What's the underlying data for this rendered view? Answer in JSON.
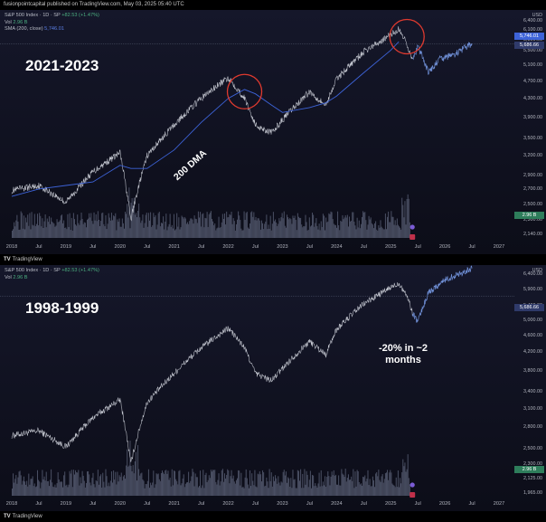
{
  "header": {
    "publisher_line": "fusionpointcapital published on TradingView.com, May 03, 2025 05:40 UTC"
  },
  "footer": {
    "brand": "TradingView",
    "logo_mark": "TV"
  },
  "colors": {
    "price_line": "#c7cad3",
    "forecast_line": "#6f8fd6",
    "sma_line": "#3d63d8",
    "circle": "#e03a2f",
    "volume": "#4a4f63",
    "price_box": "#2f3a6a",
    "vol_box": "#2e7d5b",
    "bg_top": "#15172a",
    "bg_bottom": "#0c0d18"
  },
  "icons": [
    "tradingview-logo-icon",
    "event-flag-icon",
    "earnings-marker-icon"
  ],
  "chart_data": [
    {
      "type": "line",
      "title": "2021-2023",
      "legend": {
        "symbol": "S&P 500 Index · 1D · SP",
        "change": "+82.53 (+1.47%)",
        "vol_label": "Vol",
        "vol_value": "2.96 B",
        "sma_label": "SMA (200, close)",
        "sma_value": "5,746.01"
      },
      "currency": "USD",
      "annotation": "200 DMA",
      "x_ticks": [
        "2018",
        "Jul",
        "2019",
        "Jul",
        "2020",
        "Jul",
        "2021",
        "Jul",
        "2022",
        "Jul",
        "2023",
        "Jul",
        "2024",
        "Jul",
        "2025",
        "Jul",
        "2026",
        "Jul",
        "2027"
      ],
      "y_ticks": [
        6400,
        6100,
        5800,
        5500,
        5100,
        4700,
        4300,
        3900,
        3500,
        3200,
        2900,
        2700,
        2500,
        2300,
        2140
      ],
      "y_tick_labels": [
        "6,400.00",
        "6,100.00",
        "5,800.00",
        "5,500.00",
        "5,100.00",
        "4,700.00",
        "4,300.00",
        "3,900.00",
        "3,500.00",
        "3,200.00",
        "2,900.00",
        "2,700.00",
        "2,500.00",
        "2,300.00",
        "2,140.00"
      ],
      "price_label": "5,686.66",
      "sma_label_box": "5,746.01",
      "vol_label_box": "2.96 B",
      "ylim": [
        2140,
        6400
      ],
      "x": [
        2018.0,
        2018.5,
        2019.0,
        2019.5,
        2020.0,
        2020.2,
        2020.5,
        2021.0,
        2021.5,
        2022.0,
        2022.3,
        2022.5,
        2022.8,
        2023.0,
        2023.5,
        2023.8,
        2024.0,
        2024.5,
        2025.0,
        2025.15,
        2025.3,
        2025.4,
        2025.5,
        2025.7,
        2025.9,
        2026.2,
        2026.5
      ],
      "series": [
        {
          "values": [
            2680,
            2750,
            2520,
            2950,
            3250,
            2300,
            3200,
            3750,
            4300,
            4780,
            4300,
            3750,
            3600,
            3850,
            4450,
            4150,
            4750,
            5450,
            5950,
            6130,
            5700,
            5200,
            5600,
            4900,
            5250,
            5400,
            5700
          ]
        },
        {
          "values": [
            2600,
            2700,
            2750,
            2800,
            3050,
            3000,
            3000,
            3300,
            3800,
            4300,
            4500,
            4400,
            4150,
            4000,
            4100,
            4200,
            4350,
            4900,
            5500,
            5750,
            null,
            null,
            null,
            null,
            null,
            null,
            null
          ]
        }
      ],
      "highlights": [
        {
          "x": 2022.3,
          "y": 4450
        },
        {
          "x": 2025.3,
          "y": 5900
        }
      ]
    },
    {
      "type": "line",
      "title": "1998-1999",
      "legend": {
        "symbol": "S&P 500 Index · 1D · SP",
        "change": "+82.53 (+1.47%)",
        "vol_label": "Vol",
        "vol_value": "2.96 B"
      },
      "currency": "USD",
      "annotation": "-20% in ~2 months",
      "x_ticks": [
        "2018",
        "Jul",
        "2019",
        "Jul",
        "2020",
        "Jul",
        "2021",
        "Jul",
        "2022",
        "Jul",
        "2023",
        "Jul",
        "2024",
        "Jul",
        "2025",
        "Jul",
        "2026",
        "Jul",
        "2027"
      ],
      "y_ticks": [
        6400,
        5900,
        5400,
        5000,
        4600,
        4200,
        3800,
        3400,
        3100,
        2800,
        2500,
        2300,
        2125,
        1965
      ],
      "y_tick_labels": [
        "6,400.00",
        "5,900.00",
        "5,400.00",
        "5,000.00",
        "4,600.00",
        "4,200.00",
        "3,800.00",
        "3,400.00",
        "3,100.00",
        "2,800.00",
        "2,500.00",
        "2,300.00",
        "2,125.00",
        "1,965.00"
      ],
      "price_label": "5,686.66",
      "vol_label_box": "2.96 B",
      "ylim": [
        1965,
        6400
      ],
      "x": [
        2018.0,
        2018.5,
        2019.0,
        2019.5,
        2020.0,
        2020.2,
        2020.5,
        2021.0,
        2021.5,
        2022.0,
        2022.3,
        2022.5,
        2022.8,
        2023.0,
        2023.5,
        2023.8,
        2024.0,
        2024.5,
        2025.0,
        2025.15,
        2025.3,
        2025.4,
        2025.5,
        2025.7,
        2026.0,
        2026.5
      ],
      "series": [
        {
          "values": [
            2680,
            2750,
            2520,
            2950,
            3250,
            2300,
            3200,
            3750,
            4300,
            4780,
            4300,
            3750,
            3600,
            3850,
            4450,
            4150,
            4750,
            5450,
            5950,
            6100,
            5700,
            5200,
            4950,
            5800,
            6200,
            6600
          ]
        }
      ]
    }
  ]
}
